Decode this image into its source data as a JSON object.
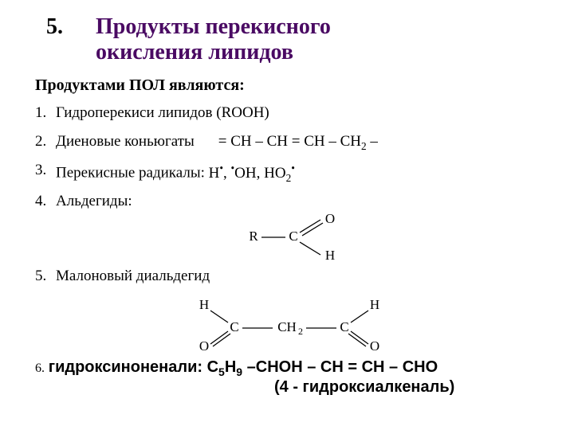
{
  "header": {
    "number": "5.",
    "title_line1": "Продукты перекисного",
    "title_line2": "окисления липидов",
    "title_color": "#4a0a63"
  },
  "subheader": "Продуктами ПОЛ являются:",
  "items": [
    {
      "n": "1.",
      "text": "Гидроперекиси липидов (ROOH)",
      "formula": ""
    },
    {
      "n": "2.",
      "text": "Диеновые коньюгаты",
      "formula": "= CH – CH = CH – CH2 –",
      "formula_has_sub2": true
    },
    {
      "n": "3.",
      "text": "Перекисные радикалы: ",
      "radicals": [
        "H",
        "OH",
        "HO2"
      ],
      "is_radicals": true
    },
    {
      "n": "4.",
      "text": "Альдегиды:"
    },
    {
      "n": "5.",
      "text": "Малоновый диальдегид"
    }
  ],
  "aldehyde_struct": {
    "R": "R",
    "C": "C",
    "O": "O",
    "H": "H",
    "stroke": "#000000",
    "font_size": 17
  },
  "malon_struct": {
    "H": "H",
    "C": "C",
    "CH2": "CH",
    "O": "O",
    "stroke": "#000000",
    "font_size": 17
  },
  "bottom": {
    "n": "6.",
    "label": "гидроксиноненали: ",
    "formula_prefix": "C",
    "formula_sub1": "5",
    "formula_mid": "H",
    "formula_sub2": "9",
    "formula_rest": " –CHOH – CH = CH – CHO",
    "line2": "(4 - гидроксиалкеналь)"
  }
}
